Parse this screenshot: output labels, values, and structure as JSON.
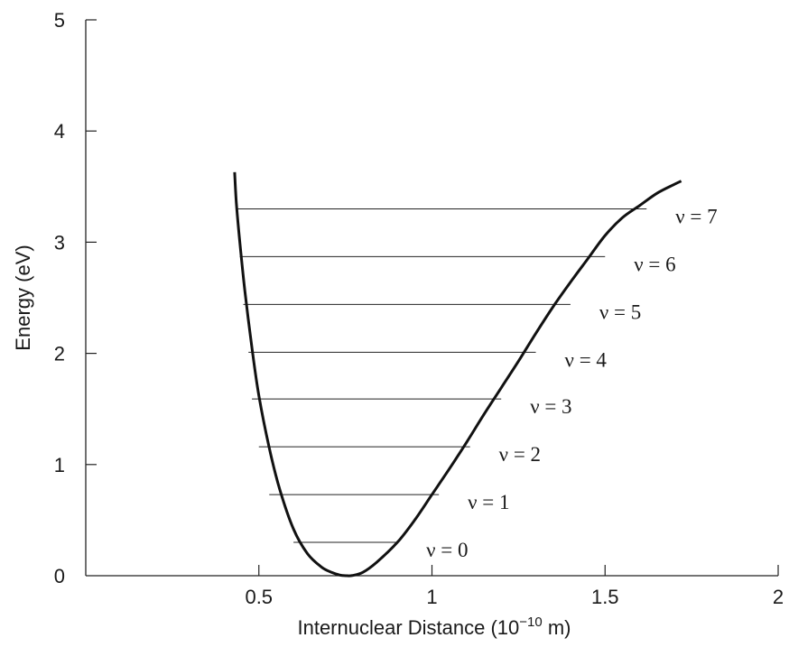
{
  "chart_data": {
    "type": "line",
    "xlabel_main": "Internuclear Distance (10",
    "xlabel_exp": "−10",
    "xlabel_unit": " m)",
    "ylabel": "Energy (eV)",
    "xlim": [
      0,
      2
    ],
    "ylim": [
      0,
      5
    ],
    "x_ticks": [
      0.5,
      1,
      1.5,
      2
    ],
    "x_tick_labels": [
      "0.5",
      "1",
      "1.5",
      "2"
    ],
    "y_ticks": [
      0,
      1,
      2,
      3,
      4,
      5
    ],
    "y_tick_labels": [
      "0",
      "1",
      "2",
      "3",
      "4",
      "5"
    ],
    "series": [
      {
        "x": [
          0.43,
          0.435,
          0.445,
          0.46,
          0.48,
          0.5,
          0.53,
          0.56,
          0.6,
          0.64,
          0.68,
          0.71,
          0.735,
          0.755,
          0.77,
          0.8,
          0.84,
          0.9,
          0.95,
          1.0,
          1.05,
          1.1,
          1.15,
          1.2,
          1.25,
          1.3,
          1.35,
          1.4,
          1.45,
          1.5,
          1.55,
          1.6,
          1.65,
          1.7,
          1.72
        ],
        "y": [
          3.63,
          3.35,
          3.0,
          2.55,
          2.05,
          1.62,
          1.15,
          0.78,
          0.42,
          0.2,
          0.08,
          0.03,
          0.005,
          0.0,
          0.002,
          0.03,
          0.12,
          0.3,
          0.5,
          0.73,
          0.96,
          1.2,
          1.45,
          1.69,
          1.93,
          2.18,
          2.42,
          2.64,
          2.85,
          3.06,
          3.22,
          3.33,
          3.44,
          3.52,
          3.55
        ]
      }
    ],
    "levels": [
      {
        "label": "ν = 0",
        "energy": 0.3,
        "x_left": 0.6,
        "x_right": 0.9
      },
      {
        "label": "ν = 1",
        "energy": 0.73,
        "x_left": 0.53,
        "x_right": 1.02
      },
      {
        "label": "ν = 2",
        "energy": 1.16,
        "x_left": 0.5,
        "x_right": 1.11
      },
      {
        "label": "ν = 3",
        "energy": 1.59,
        "x_left": 0.48,
        "x_right": 1.2
      },
      {
        "label": "ν = 4",
        "energy": 2.01,
        "x_left": 0.47,
        "x_right": 1.3
      },
      {
        "label": "ν = 5",
        "energy": 2.44,
        "x_left": 0.455,
        "x_right": 1.4
      },
      {
        "label": "ν = 6",
        "energy": 2.87,
        "x_left": 0.445,
        "x_right": 1.5
      },
      {
        "label": "ν = 7",
        "energy": 3.3,
        "x_left": 0.435,
        "x_right": 1.62
      }
    ],
    "grid": false
  }
}
